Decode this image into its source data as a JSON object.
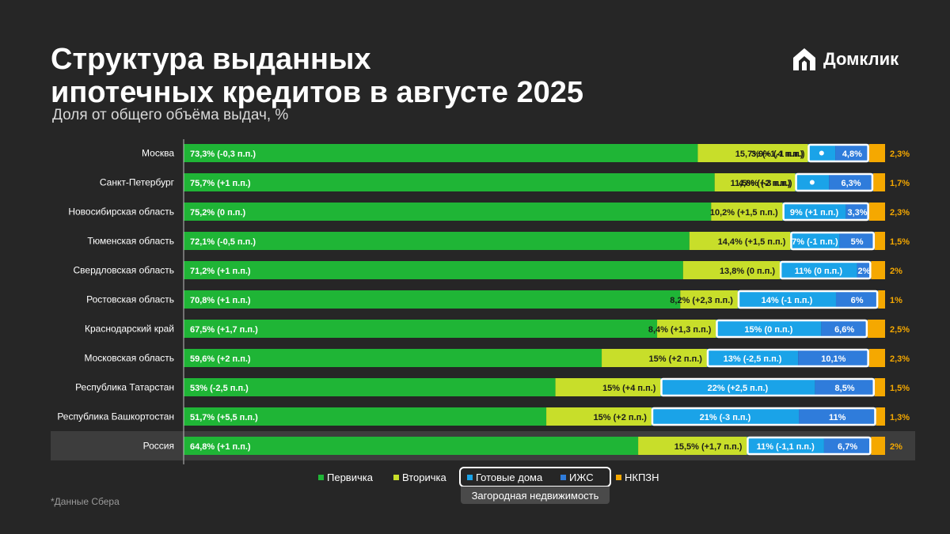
{
  "header": {
    "title_line1": "Структура выданных",
    "title_line2": "ипотечных кредитов в августе 2025",
    "subtitle": "Доля от общего объёма выдач, %"
  },
  "brand": {
    "logo_text": "Домклик",
    "logo_icon": "house-icon"
  },
  "footnote": "*Данные Сбера",
  "colors": {
    "primary": "#1fb536",
    "secondary": "#c8de2a",
    "ready_houses": "#1aa3e8",
    "izhs": "#2f7cdb",
    "nkpzn": "#f5a800",
    "background": "#262626",
    "highlight_row": "#3d3d3d"
  },
  "legend": {
    "items": [
      {
        "key": "primary",
        "label": "Первичка"
      },
      {
        "key": "secondary",
        "label": "Вторичка"
      },
      {
        "key": "ready_houses",
        "label": "Готовые дома"
      },
      {
        "key": "izhs",
        "label": "ИЖС"
      },
      {
        "key": "nkpzn",
        "label": "НКПЗН"
      }
    ],
    "group_label": "Загородная недвижимость"
  },
  "chart_data": {
    "type": "bar",
    "orientation": "horizontal",
    "stacked": true,
    "unit": "%",
    "xlim": [
      0,
      100
    ],
    "legend_position": "bottom",
    "categories": [
      "Москва",
      "Санкт-Петербург",
      "Новосибирская область",
      "Тюменская область",
      "Свердловская область",
      "Ростовская область",
      "Краснодарский край",
      "Московская область",
      "Республика Татарстан",
      "Республика Башкортостан",
      "Россия"
    ],
    "highlight_category": "Россия",
    "series": [
      {
        "name": "Первичка",
        "key": "primary",
        "values": [
          73.3,
          75.7,
          75.2,
          72.1,
          71.2,
          70.8,
          67.5,
          59.6,
          53,
          51.7,
          64.8
        ],
        "labels": [
          "73,3% (-0,3 п.п.)",
          "75,7% (+1 п.п.)",
          "75,2% (0 п.п.)",
          "72,1% (-0,5 п.п.)",
          "71,2% (+1 п.п.)",
          "70,8% (+1 п.п.)",
          "67,5% (+1,7 п.п.)",
          "59,6% (+2 п.п.)",
          "53% (-2,5 п.п.)",
          "51,7% (+5,5 п.п.)",
          "64,8% (+1 п.п.)"
        ]
      },
      {
        "name": "Вторичка",
        "key": "secondary",
        "values": [
          15.7,
          11.5,
          10.2,
          14.4,
          13.8,
          8.2,
          8.4,
          15,
          15,
          15,
          15.5
        ],
        "labels": [
          "15,7% (+1,4 п.п.)",
          "11,5% (+2 п.п.)",
          "10,2% (+1,5 п.п.)",
          "14,4% (+1,5 п.п.)",
          "13,8% (0 п.п.)",
          "8,2% (+2,3 п.п.)",
          "8,4% (+1,3 п.п.)",
          "15% (+2 п.п.)",
          "15% (+4 п.п.)",
          "15% (+2 п.п.)",
          "15,5% (+1,7 п.п.)"
        ]
      },
      {
        "name": "Готовые дома",
        "key": "ready_houses",
        "values": [
          3.9,
          4.8,
          9,
          7,
          11,
          14,
          15,
          13,
          22,
          21,
          11
        ],
        "labels": [
          "3,9% (-1 п.п.)",
          "4,8% (-3 п.п.)",
          "9% (+1 п.п.)",
          "7% (-1 п.п.)",
          "11% (0 п.п.)",
          "14% (-1 п.п.)",
          "15% (0 п.п.)",
          "13% (-2,5 п.п.)",
          "22% (+2,5 п.п.)",
          "21% (-3 п.п.)",
          "11% (-1,1 п.п.)"
        ]
      },
      {
        "name": "ИЖС",
        "key": "izhs",
        "values": [
          4.8,
          6.3,
          3.3,
          5,
          2,
          6,
          6.6,
          10.1,
          8.5,
          11,
          6.7
        ],
        "labels": [
          "4,8%",
          "6,3%",
          "3,3%",
          "5%",
          "2%",
          "6%",
          "6,6%",
          "10,1%",
          "8,5%",
          "11%",
          "6,7%"
        ]
      },
      {
        "name": "НКПЗН",
        "key": "nkpzn",
        "values": [
          2.3,
          1.7,
          2.3,
          1.5,
          2,
          1,
          2.5,
          2.3,
          1.5,
          1.3,
          2
        ],
        "labels": [
          "2,3%",
          "1,7%",
          "2,3%",
          "1,5%",
          "2%",
          "1%",
          "2,5%",
          "2,3%",
          "1,5%",
          "1,3%",
          "2%"
        ]
      }
    ]
  }
}
